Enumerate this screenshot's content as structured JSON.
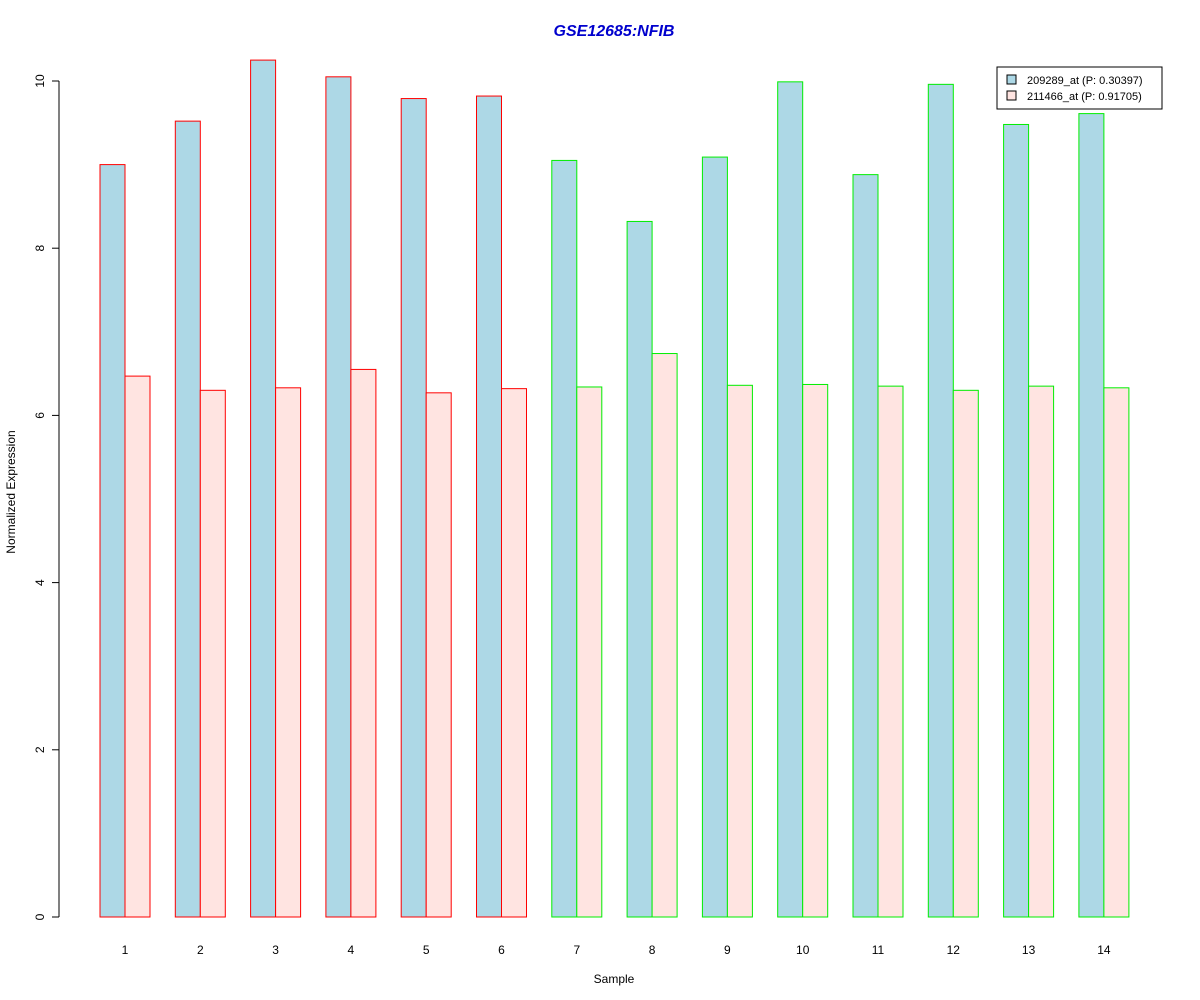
{
  "chart_data": {
    "type": "bar",
    "title": "GSE12685:NFIB",
    "xlabel": "Sample",
    "ylabel": "Normalized Expression",
    "categories": [
      "1",
      "2",
      "3",
      "4",
      "5",
      "6",
      "7",
      "8",
      "9",
      "10",
      "11",
      "12",
      "13",
      "14"
    ],
    "ylim": [
      0,
      10.2
    ],
    "yticks": [
      0,
      2,
      4,
      6,
      8,
      10
    ],
    "series": [
      {
        "name": "209289_at (P: 0.30397)",
        "fill": "#add8e6",
        "values": [
          9.0,
          9.52,
          10.25,
          10.05,
          9.79,
          9.82,
          9.05,
          8.32,
          9.09,
          9.99,
          8.88,
          9.96,
          9.48,
          9.61
        ]
      },
      {
        "name": "211466_at (P: 0.91705)",
        "fill": "#ffe4e1",
        "values": [
          6.47,
          6.3,
          6.33,
          6.55,
          6.27,
          6.32,
          6.34,
          6.74,
          6.36,
          6.37,
          6.35,
          6.3,
          6.35,
          6.33
        ]
      }
    ],
    "group_border_colors": [
      "#ff0000",
      "#ff0000",
      "#ff0000",
      "#ff0000",
      "#ff0000",
      "#ff0000",
      "#00ee00",
      "#00ee00",
      "#00ee00",
      "#00ee00",
      "#00ee00",
      "#00ee00",
      "#00ee00",
      "#00ee00"
    ],
    "title_color": "#0000cd",
    "legend_position": "top-right",
    "grid": false
  }
}
